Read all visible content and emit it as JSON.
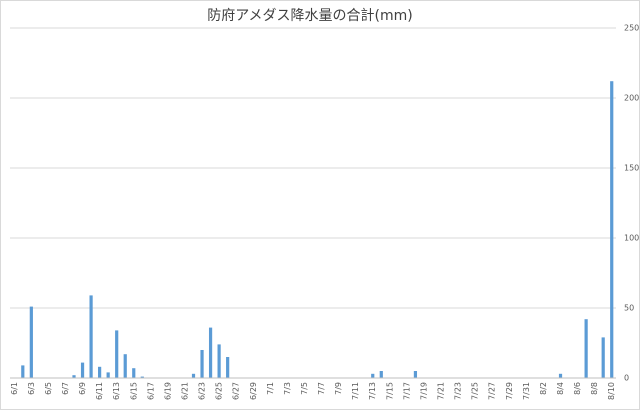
{
  "chart_data": {
    "type": "bar",
    "title": "防府アメダス降水量の合計(mm)",
    "categories": [
      "6/1",
      null,
      "6/3",
      null,
      "6/5",
      null,
      "6/7",
      null,
      "6/9",
      null,
      "6/11",
      null,
      "6/13",
      null,
      "6/15",
      null,
      "6/17",
      null,
      "6/19",
      null,
      "6/21",
      null,
      "6/23",
      null,
      "6/25",
      null,
      "6/27",
      null,
      "6/29",
      null,
      "7/1",
      null,
      "7/3",
      null,
      "7/5",
      null,
      "7/7",
      null,
      "7/9",
      null,
      "7/11",
      null,
      "7/13",
      null,
      "7/15",
      null,
      "7/17",
      null,
      "7/19",
      null,
      "7/21",
      null,
      "7/23",
      null,
      "7/25",
      null,
      "7/27",
      null,
      "7/29",
      null,
      "7/31",
      null,
      "8/2",
      null,
      "8/4",
      null,
      "8/6",
      null,
      "8/8",
      null,
      "8/10"
    ],
    "values": [
      0,
      9,
      51,
      0,
      0,
      0,
      0,
      2,
      11,
      59,
      8,
      4,
      34,
      17,
      7,
      1,
      0,
      0,
      0,
      0,
      0,
      3,
      20,
      36,
      24,
      15,
      0,
      0,
      0,
      0,
      0,
      0,
      0,
      0,
      0,
      0,
      0,
      0,
      0,
      0,
      0,
      0,
      3,
      5,
      0,
      0,
      0,
      5,
      0,
      0,
      0,
      0,
      0,
      0,
      0,
      0,
      0,
      0,
      0,
      0,
      0,
      0,
      0,
      0,
      3,
      0,
      0,
      42,
      0,
      29,
      212
    ],
    "color": "#5b9bd5",
    "ylim": [
      0,
      250
    ],
    "yticks": [
      0,
      50,
      100,
      150,
      200,
      250
    ],
    "grid": true
  }
}
